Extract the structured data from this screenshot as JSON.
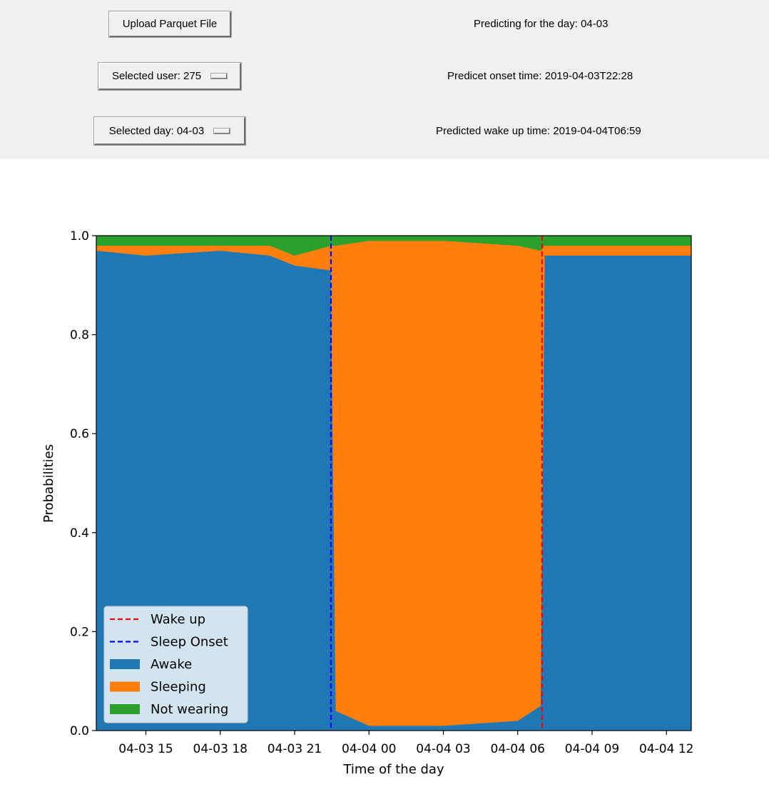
{
  "controls": {
    "upload_label": "Upload Parquet File",
    "user_select": "Selected user: 275",
    "day_select": "Selected day: 04-03"
  },
  "info": {
    "predicting_day": "Predicting for the day: 04-03",
    "onset_time": "Predicet onset time: 2019-04-03T22:28",
    "wake_time": "Predicted wake up time: 2019-04-04T06:59"
  },
  "colors": {
    "awake": "#1f77b4",
    "sleeping": "#ff7f0e",
    "not_wearing": "#2ca02c",
    "wake_line": "#ff0000",
    "onset_line": "#0000ff"
  },
  "chart_data": {
    "type": "area",
    "stacked": true,
    "xlabel": "Time of the day",
    "ylabel": "Probabilities",
    "x_range": [
      "2019-04-03T13:00",
      "2019-04-04T13:00"
    ],
    "ylim": [
      0,
      1
    ],
    "y_ticks": [
      0.0,
      0.2,
      0.4,
      0.6,
      0.8,
      1.0
    ],
    "y_tick_labels": [
      "0.0",
      "0.2",
      "0.4",
      "0.6",
      "0.8",
      "1.0"
    ],
    "x_ticks": [
      "2019-04-03T15:00",
      "2019-04-03T18:00",
      "2019-04-03T21:00",
      "2019-04-04T00:00",
      "2019-04-04T03:00",
      "2019-04-04T06:00",
      "2019-04-04T09:00",
      "2019-04-04T12:00"
    ],
    "x_tick_labels": [
      "04-03 15",
      "04-03 18",
      "04-03 21",
      "04-04 00",
      "04-04 03",
      "04-04 06",
      "04-04 09",
      "04-04 12"
    ],
    "legend_position": "lower-left",
    "legend": [
      "Wake up",
      "Sleep Onset",
      "Awake",
      "Sleeping",
      "Not wearing"
    ],
    "vlines": [
      {
        "name": "Sleep Onset",
        "x": "2019-04-03T22:28",
        "style": "dashed"
      },
      {
        "name": "Wake up",
        "x": "2019-04-04T06:59",
        "style": "dashed"
      }
    ],
    "x": [
      "2019-04-03T13:00",
      "2019-04-03T15:00",
      "2019-04-03T18:00",
      "2019-04-03T20:00",
      "2019-04-03T21:00",
      "2019-04-03T22:28",
      "2019-04-03T22:40",
      "2019-04-04T00:00",
      "2019-04-04T03:00",
      "2019-04-04T06:00",
      "2019-04-04T06:55",
      "2019-04-04T07:05",
      "2019-04-04T09:00",
      "2019-04-04T12:00",
      "2019-04-04T13:00"
    ],
    "series": [
      {
        "name": "Awake",
        "values": [
          0.97,
          0.96,
          0.97,
          0.96,
          0.94,
          0.93,
          0.04,
          0.01,
          0.01,
          0.02,
          0.05,
          0.96,
          0.96,
          0.96,
          0.96
        ]
      },
      {
        "name": "Sleeping",
        "values": [
          0.01,
          0.02,
          0.01,
          0.02,
          0.02,
          0.05,
          0.94,
          0.98,
          0.98,
          0.96,
          0.92,
          0.02,
          0.02,
          0.02,
          0.02
        ]
      },
      {
        "name": "Not wearing",
        "values": [
          0.02,
          0.02,
          0.02,
          0.02,
          0.04,
          0.02,
          0.02,
          0.01,
          0.01,
          0.02,
          0.03,
          0.02,
          0.02,
          0.02,
          0.02
        ]
      }
    ]
  }
}
